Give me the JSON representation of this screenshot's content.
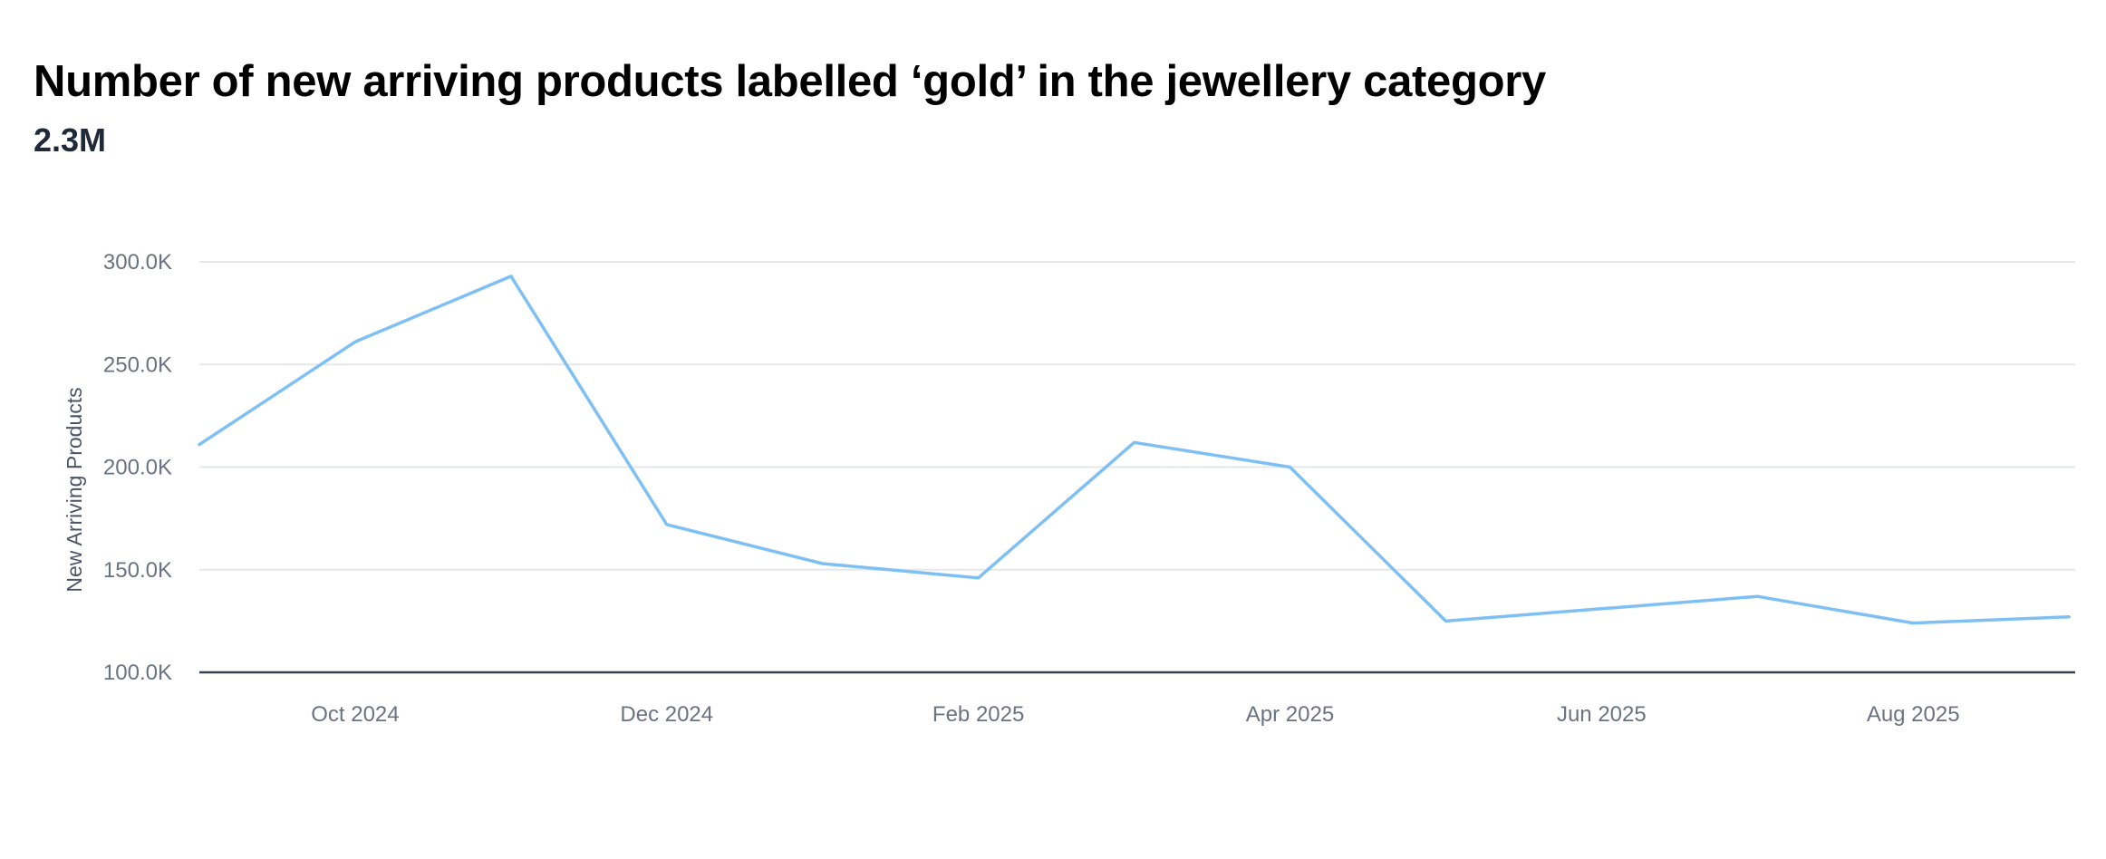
{
  "title": "Number of new arriving products labelled ‘gold’ in the jewellery category",
  "total": "2.3M",
  "colors": {
    "line": "#7fc0f4",
    "grid": "#e5e7eb",
    "baseline": "#374151",
    "tick_text": "#6b7280"
  },
  "chart_data": {
    "type": "line",
    "title": "Number of new arriving products labelled ‘gold’ in the jewellery category",
    "xlabel": "",
    "ylabel": "New Arriving Products",
    "ylim": [
      100000,
      300000
    ],
    "yticks": [
      100000,
      150000,
      200000,
      250000,
      300000
    ],
    "ytick_labels": [
      "100.0K",
      "150.0K",
      "200.0K",
      "250.0K",
      "300.0K"
    ],
    "xticks": [
      "2024-10",
      "2024-12",
      "2025-02",
      "2025-04",
      "2025-06",
      "2025-08"
    ],
    "xtick_labels": [
      "Oct 2024",
      "Dec 2024",
      "Feb 2025",
      "Apr 2025",
      "Jun 2025",
      "Aug 2025"
    ],
    "grid": true,
    "legend": "none",
    "x": [
      "2024-09",
      "2024-10",
      "2024-11",
      "2024-12",
      "2025-01",
      "2025-02",
      "2025-03",
      "2025-04",
      "2025-05",
      "2025-06",
      "2025-07",
      "2025-08",
      "2025-09"
    ],
    "series": [
      {
        "values": [
          211000,
          261000,
          293000,
          172000,
          153000,
          146000,
          212000,
          200000,
          125000,
          131000,
          137000,
          124000,
          127000
        ]
      }
    ]
  }
}
